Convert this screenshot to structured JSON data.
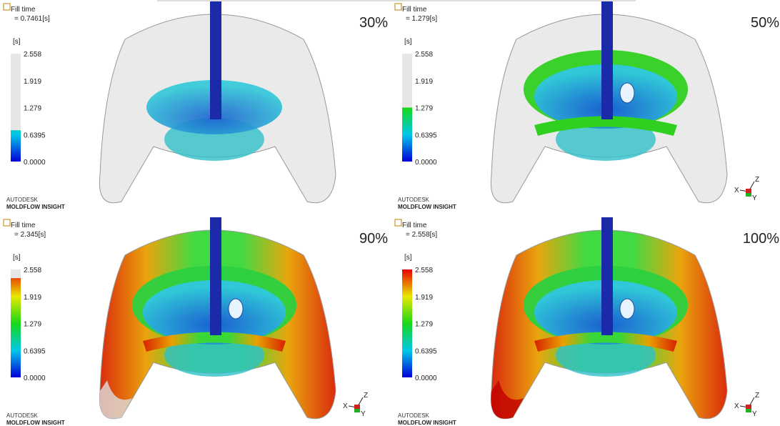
{
  "panels": [
    {
      "title": "Fill time",
      "value": "= 0.7461[s]",
      "unit": "[s]",
      "scale": [
        "2.558",
        "1.919",
        "1.279",
        "0.6395",
        "0.0000"
      ],
      "percent": "30%",
      "brand": [
        "AUTODESK",
        "MOLDFLOW INSIGHT"
      ]
    },
    {
      "title": "Fill time",
      "value": "= 1.279[s]",
      "unit": "[s]",
      "scale": [
        "2.558",
        "1.919",
        "1.279",
        "0.6395",
        "0.0000"
      ],
      "percent": "50%",
      "brand": [
        "AUTODESK",
        "MOLDFLOW INSIGHT"
      ],
      "axes": [
        "Z",
        "X",
        "Y"
      ]
    },
    {
      "title": "Fill time",
      "value": "= 2.345[s]",
      "unit": "[s]",
      "scale": [
        "2.558",
        "1.919",
        "1.279",
        "0.6395",
        "0.0000"
      ],
      "percent": "90%",
      "brand": [
        "AUTODESK",
        "MOLDFLOW INSIGHT"
      ],
      "axes": [
        "Z",
        "X",
        "Y"
      ]
    },
    {
      "title": "Fill time",
      "value": "= 2.558[s]",
      "unit": "[s]",
      "scale": [
        "2.558",
        "1.919",
        "1.279",
        "0.6395",
        "0.0000"
      ],
      "percent": "100%",
      "brand": [
        "AUTODESK",
        "MOLDFLOW INSIGHT"
      ],
      "axes": [
        "Z",
        "X",
        "Y"
      ]
    }
  ]
}
